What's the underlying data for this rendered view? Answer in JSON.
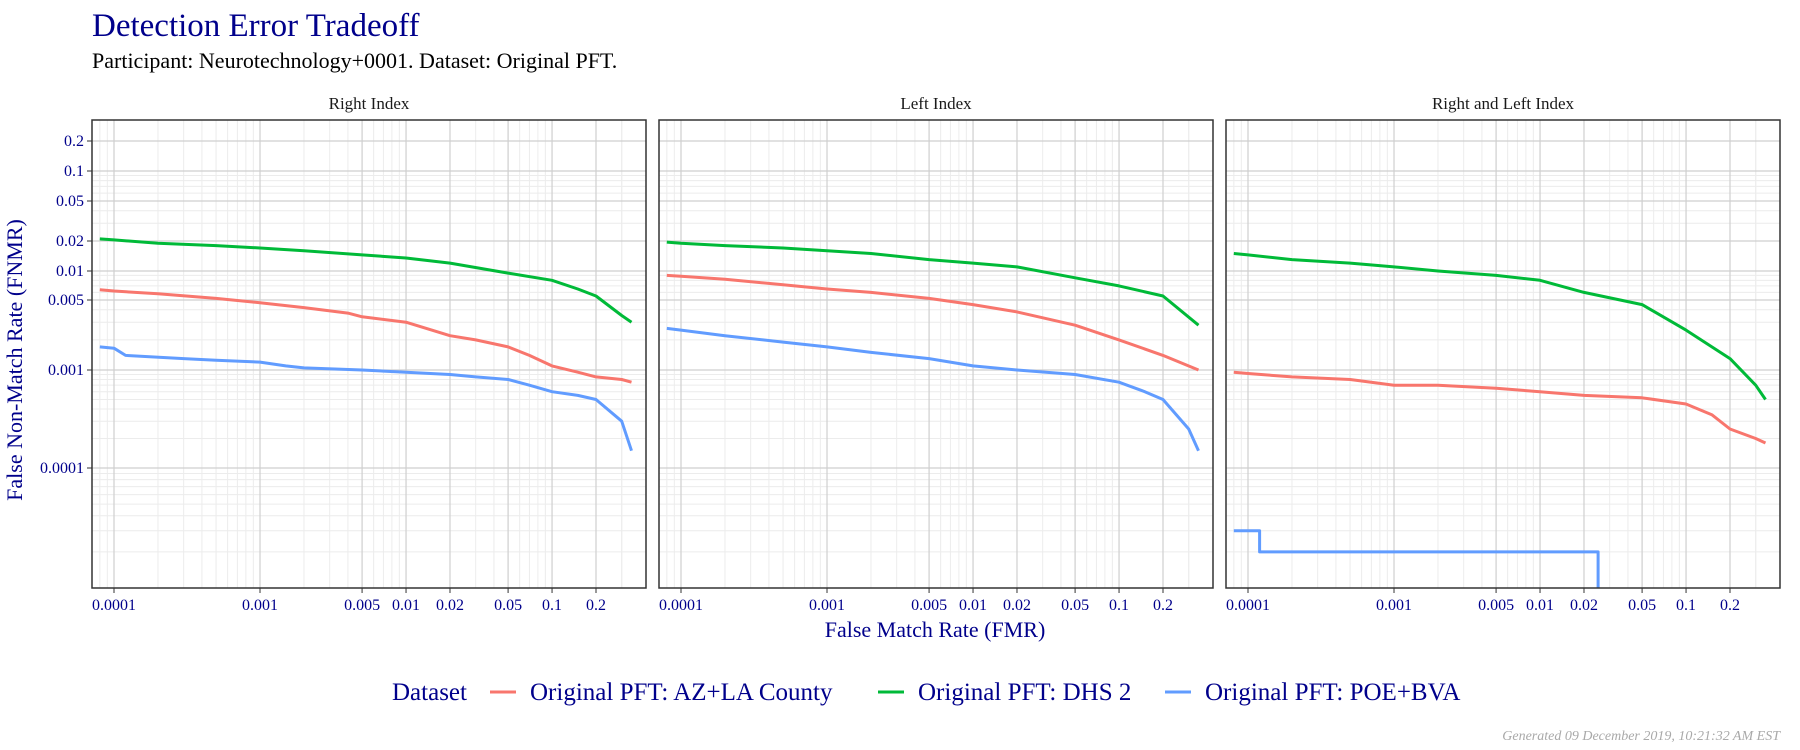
{
  "title": "Detection Error Tradeoff",
  "subtitle": "Participant: Neurotechnology+0001. Dataset: Original PFT.",
  "footer": "Generated 09 December 2019, 10:21:32 AM EST",
  "legend": {
    "title": "Dataset",
    "placement": "bottom",
    "entries": [
      {
        "label": "Original PFT: AZ+LA County",
        "color": "#f8766d"
      },
      {
        "label": "Original PFT: DHS 2",
        "color": "#00ba38"
      },
      {
        "label": "Original PFT: POE+BVA",
        "color": "#619cff"
      }
    ]
  },
  "chart_data": {
    "type": "line",
    "xlabel": "False Match Rate (FMR)",
    "ylabel": "False Non-Match Rate (FNMR)",
    "x_scale": "log",
    "y_scale": "nonlinear",
    "grid": true,
    "x_ticks": [
      {
        "value": 0.0001,
        "label": "0.0001"
      },
      {
        "value": 0.001,
        "label": "0.001"
      },
      {
        "value": 0.005,
        "label": "0.005"
      },
      {
        "value": 0.01,
        "label": "0.01"
      },
      {
        "value": 0.02,
        "label": "0.02"
      },
      {
        "value": 0.05,
        "label": "0.05"
      },
      {
        "value": 0.1,
        "label": "0.1"
      },
      {
        "value": 0.2,
        "label": "0.2"
      }
    ],
    "y_ticks": [
      {
        "value": 0.0001,
        "label": "0.0001"
      },
      {
        "value": 0.001,
        "label": "0.001"
      },
      {
        "value": 0.005,
        "label": "0.005"
      },
      {
        "value": 0.01,
        "label": "0.01"
      },
      {
        "value": 0.02,
        "label": "0.02"
      },
      {
        "value": 0.05,
        "label": "0.05"
      },
      {
        "value": 0.1,
        "label": "0.1"
      },
      {
        "value": 0.2,
        "label": "0.2"
      }
    ],
    "xlim": [
      8e-05,
      0.35
    ],
    "ylim": [
      1e-05,
      0.3
    ],
    "panels": [
      {
        "title": "Right Index",
        "series": [
          {
            "name": "Original PFT: AZ+LA County",
            "color": "#f8766d",
            "points": [
              [
                8e-05,
                0.0064
              ],
              [
                0.0001,
                0.0062
              ],
              [
                0.0002,
                0.0058
              ],
              [
                0.0005,
                0.0052
              ],
              [
                0.001,
                0.0047
              ],
              [
                0.002,
                0.0042
              ],
              [
                0.004,
                0.0037
              ],
              [
                0.005,
                0.0034
              ],
              [
                0.01,
                0.003
              ],
              [
                0.015,
                0.0025
              ],
              [
                0.02,
                0.0022
              ],
              [
                0.03,
                0.002
              ],
              [
                0.05,
                0.0017
              ],
              [
                0.07,
                0.0014
              ],
              [
                0.1,
                0.0011
              ],
              [
                0.15,
                0.00095
              ],
              [
                0.2,
                0.00085
              ],
              [
                0.3,
                0.0008
              ],
              [
                0.35,
                0.00075
              ]
            ]
          },
          {
            "name": "Original PFT: DHS 2",
            "color": "#00ba38",
            "points": [
              [
                8e-05,
                0.021
              ],
              [
                0.0001,
                0.0205
              ],
              [
                0.0002,
                0.019
              ],
              [
                0.0005,
                0.018
              ],
              [
                0.001,
                0.017
              ],
              [
                0.002,
                0.016
              ],
              [
                0.005,
                0.0145
              ],
              [
                0.01,
                0.0135
              ],
              [
                0.02,
                0.012
              ],
              [
                0.05,
                0.0095
              ],
              [
                0.1,
                0.008
              ],
              [
                0.15,
                0.0065
              ],
              [
                0.2,
                0.0055
              ],
              [
                0.3,
                0.0035
              ],
              [
                0.35,
                0.003
              ]
            ]
          },
          {
            "name": "Original PFT: POE+BVA",
            "color": "#619cff",
            "points": [
              [
                8e-05,
                0.0017
              ],
              [
                0.0001,
                0.00165
              ],
              [
                0.00012,
                0.0014
              ],
              [
                0.0003,
                0.0013
              ],
              [
                0.0005,
                0.00125
              ],
              [
                0.001,
                0.0012
              ],
              [
                0.0015,
                0.0011
              ],
              [
                0.002,
                0.00105
              ],
              [
                0.005,
                0.001
              ],
              [
                0.01,
                0.00095
              ],
              [
                0.02,
                0.0009
              ],
              [
                0.03,
                0.00085
              ],
              [
                0.05,
                0.0008
              ],
              [
                0.07,
                0.0007
              ],
              [
                0.1,
                0.0006
              ],
              [
                0.15,
                0.00055
              ],
              [
                0.2,
                0.0005
              ],
              [
                0.3,
                0.0003
              ],
              [
                0.35,
                0.00015
              ]
            ]
          }
        ]
      },
      {
        "title": "Left Index",
        "series": [
          {
            "name": "Original PFT: AZ+LA County",
            "color": "#f8766d",
            "points": [
              [
                8e-05,
                0.009
              ],
              [
                0.0001,
                0.0088
              ],
              [
                0.0002,
                0.0082
              ],
              [
                0.0005,
                0.0072
              ],
              [
                0.001,
                0.0065
              ],
              [
                0.002,
                0.006
              ],
              [
                0.005,
                0.0052
              ],
              [
                0.01,
                0.0045
              ],
              [
                0.02,
                0.0038
              ],
              [
                0.05,
                0.0028
              ],
              [
                0.1,
                0.002
              ],
              [
                0.2,
                0.0014
              ],
              [
                0.35,
                0.001
              ]
            ]
          },
          {
            "name": "Original PFT: DHS 2",
            "color": "#00ba38",
            "points": [
              [
                8e-05,
                0.0195
              ],
              [
                0.0001,
                0.019
              ],
              [
                0.0002,
                0.018
              ],
              [
                0.0005,
                0.017
              ],
              [
                0.001,
                0.016
              ],
              [
                0.002,
                0.015
              ],
              [
                0.005,
                0.013
              ],
              [
                0.01,
                0.012
              ],
              [
                0.02,
                0.011
              ],
              [
                0.05,
                0.0085
              ],
              [
                0.1,
                0.007
              ],
              [
                0.2,
                0.0055
              ],
              [
                0.35,
                0.0028
              ]
            ]
          },
          {
            "name": "Original PFT: POE+BVA",
            "color": "#619cff",
            "points": [
              [
                8e-05,
                0.0026
              ],
              [
                0.0001,
                0.0025
              ],
              [
                0.0002,
                0.0022
              ],
              [
                0.0005,
                0.0019
              ],
              [
                0.001,
                0.0017
              ],
              [
                0.002,
                0.0015
              ],
              [
                0.005,
                0.0013
              ],
              [
                0.01,
                0.0011
              ],
              [
                0.02,
                0.001
              ],
              [
                0.05,
                0.0009
              ],
              [
                0.1,
                0.00075
              ],
              [
                0.15,
                0.0006
              ],
              [
                0.2,
                0.0005
              ],
              [
                0.3,
                0.00025
              ],
              [
                0.35,
                0.00015
              ]
            ]
          }
        ]
      },
      {
        "title": "Right and Left Index",
        "series": [
          {
            "name": "Original PFT: AZ+LA County",
            "color": "#f8766d",
            "points": [
              [
                8e-05,
                0.00095
              ],
              [
                0.0001,
                0.00092
              ],
              [
                0.0002,
                0.00085
              ],
              [
                0.0005,
                0.0008
              ],
              [
                0.001,
                0.0007
              ],
              [
                0.002,
                0.0007
              ],
              [
                0.005,
                0.00065
              ],
              [
                0.01,
                0.0006
              ],
              [
                0.02,
                0.00055
              ],
              [
                0.05,
                0.00052
              ],
              [
                0.1,
                0.00045
              ],
              [
                0.15,
                0.00035
              ],
              [
                0.2,
                0.00025
              ],
              [
                0.3,
                0.0002
              ],
              [
                0.35,
                0.00018
              ]
            ]
          },
          {
            "name": "Original PFT: DHS 2",
            "color": "#00ba38",
            "points": [
              [
                8e-05,
                0.015
              ],
              [
                0.0001,
                0.0145
              ],
              [
                0.0002,
                0.013
              ],
              [
                0.0005,
                0.012
              ],
              [
                0.001,
                0.011
              ],
              [
                0.002,
                0.01
              ],
              [
                0.005,
                0.009
              ],
              [
                0.01,
                0.008
              ],
              [
                0.02,
                0.006
              ],
              [
                0.05,
                0.0045
              ],
              [
                0.1,
                0.0025
              ],
              [
                0.2,
                0.0013
              ],
              [
                0.3,
                0.0007
              ],
              [
                0.35,
                0.0005
              ]
            ]
          },
          {
            "name": "Original PFT: POE+BVA",
            "color": "#619cff",
            "points": [
              [
                8e-05,
                3e-05
              ],
              [
                0.00012,
                3e-05
              ],
              [
                0.00012,
                2e-05
              ],
              [
                0.025,
                2e-05
              ],
              [
                0.025,
                1e-05
              ]
            ]
          }
        ]
      }
    ]
  }
}
